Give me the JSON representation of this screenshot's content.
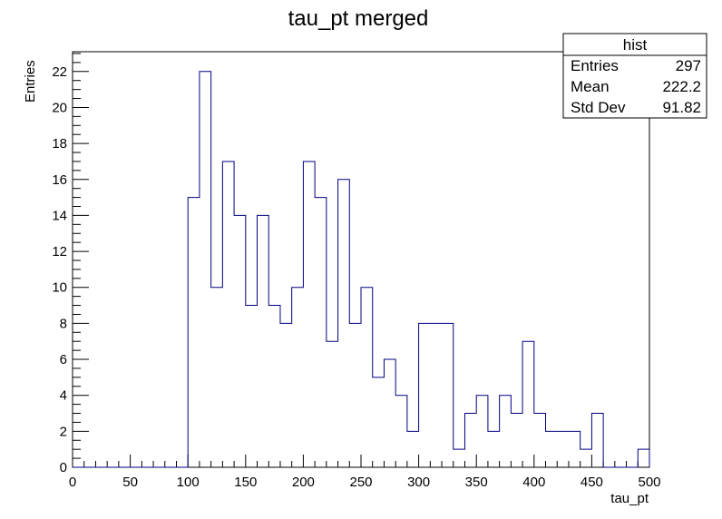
{
  "chart_data": {
    "type": "bar",
    "histogram": true,
    "title": "tau_pt merged",
    "xlabel": "tau_pt",
    "ylabel": "Entries",
    "xlim": [
      0,
      500
    ],
    "ylim": [
      0,
      23.1
    ],
    "bin_width": 10,
    "x": [
      0,
      10,
      20,
      30,
      40,
      50,
      60,
      70,
      80,
      90,
      100,
      110,
      120,
      130,
      140,
      150,
      160,
      170,
      180,
      190,
      200,
      210,
      220,
      230,
      240,
      250,
      260,
      270,
      280,
      290,
      300,
      310,
      320,
      330,
      340,
      350,
      360,
      370,
      380,
      390,
      400,
      410,
      420,
      430,
      440,
      450,
      460,
      470,
      480,
      490
    ],
    "values": [
      0,
      0,
      0,
      0,
      0,
      0,
      0,
      0,
      0,
      0,
      15,
      22,
      10,
      17,
      14,
      9,
      14,
      9,
      8,
      10,
      17,
      15,
      7,
      16,
      8,
      10,
      5,
      6,
      4,
      2,
      8,
      8,
      8,
      1,
      3,
      4,
      2,
      4,
      3,
      7,
      3,
      2,
      2,
      2,
      1,
      3,
      0,
      0,
      0,
      1
    ],
    "x_ticks": [
      "0",
      "50",
      "100",
      "150",
      "200",
      "250",
      "300",
      "350",
      "400",
      "450",
      "500"
    ],
    "y_ticks": [
      "0",
      "2",
      "4",
      "6",
      "8",
      "10",
      "12",
      "14",
      "16",
      "18",
      "20",
      "22"
    ],
    "grid": false,
    "line_color": "#000080",
    "stats_box": {
      "title": "hist",
      "placement": "top-right",
      "rows": [
        {
          "label": "Entries",
          "value": "297"
        },
        {
          "label": "Mean",
          "value": "222.2"
        },
        {
          "label": "Std Dev",
          "value": "91.82"
        }
      ]
    }
  }
}
